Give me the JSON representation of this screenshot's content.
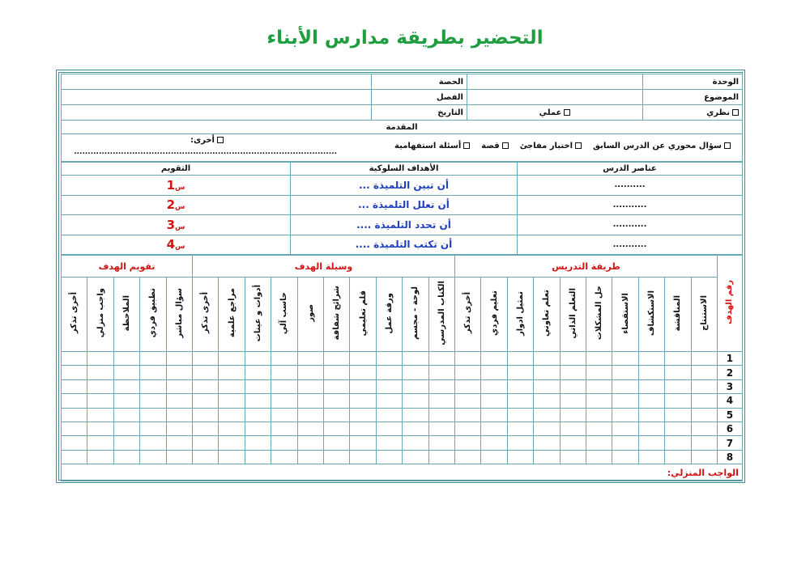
{
  "title": "التحضير بطريقة مدارس الأبناء",
  "header": {
    "unit": "الوحدة",
    "period": "الحصة",
    "topic": "الموضوع",
    "class": "الفصل",
    "theoretical": "نظري",
    "practical": "عملي",
    "date": "التاريخ"
  },
  "intro": {
    "label": "المقدمة",
    "options": [
      "سؤال محوري عن الدرس السابق",
      "اختبار مفاجئ",
      "قصة",
      "أسئلة استفهامية"
    ],
    "other": "أخرى:",
    "other_line": "..............................................................................................."
  },
  "lesson": {
    "headers": {
      "elements": "عناصر الدرس",
      "objectives": "الأهداف السلوكية",
      "evaluation": "التقويم"
    },
    "rows": [
      {
        "element": "..........",
        "objective": "أن تبين التلميذة ...",
        "q": "س",
        "n": "1"
      },
      {
        "element": "...........",
        "objective": "أن تعلل التلميذة ...",
        "q": "س",
        "n": "2"
      },
      {
        "element": "...........",
        "objective": "أن تحدد التلميذة ....",
        "q": "س",
        "n": "3"
      },
      {
        "element": "...........",
        "objective": "أن تكتب التلميذة ....",
        "q": "س",
        "n": "4"
      }
    ]
  },
  "grid": {
    "objective_no": "رقم الهدف",
    "groups": [
      {
        "label": "طريقة التدريس",
        "cols": [
          "الاستنتاج",
          "المناقشة",
          "الاستكشاف",
          "الاستقصاء",
          "حل المشكلات",
          "التعلم الذاتي",
          "تعلم تعاوني",
          "تمثيل ادوار",
          "تعليم فردي",
          "أخرى تذكر"
        ]
      },
      {
        "label": "وسيلة الهدف",
        "cols": [
          "الكتاب المدرسي",
          "لوحة - مجسم",
          "ورقة عمل",
          "قلم تعليمي",
          "شرائح شفافة",
          "صور",
          "حاسب آلي",
          "أدوات و عينات",
          "مراجع علمية",
          "أخرى تذكر"
        ]
      },
      {
        "label": "تقويم الهدف",
        "cols": [
          "سؤال مباشر",
          "تطبيق فردي",
          "الملاحظة",
          "واجب منزلي",
          "أخرى تذكر"
        ]
      }
    ],
    "rows": [
      "1",
      "2",
      "3",
      "4",
      "5",
      "6",
      "7",
      "8"
    ]
  },
  "homework": "الواجب المنزلي:",
  "colors": {
    "title": "#1f9e3f",
    "border": "#3c8c9c",
    "accent_red": "#d21414",
    "objective_blue": "#1d3fbf"
  }
}
